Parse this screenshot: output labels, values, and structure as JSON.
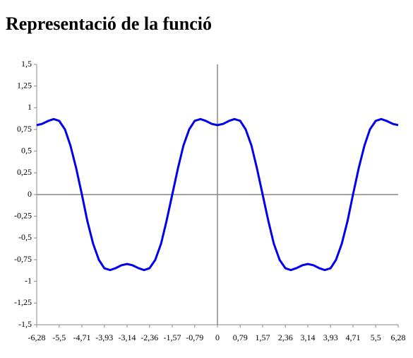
{
  "chart_data": {
    "type": "line",
    "title": "Representació de la funció",
    "color": "#0000ee",
    "x": [
      -6.28,
      -6.09,
      -5.89,
      -5.69,
      -5.5,
      -5.3,
      -5.11,
      -4.91,
      -4.71,
      -4.52,
      -4.32,
      -4.12,
      -3.93,
      -3.73,
      -3.53,
      -3.34,
      -3.14,
      -2.95,
      -2.75,
      -2.55,
      -2.36,
      -2.16,
      -1.96,
      -1.77,
      -1.57,
      -1.37,
      -1.18,
      -0.98,
      -0.79,
      -0.59,
      -0.39,
      -0.2,
      0,
      0.2,
      0.39,
      0.59,
      0.79,
      0.98,
      1.18,
      1.37,
      1.57,
      1.77,
      1.96,
      2.16,
      2.36,
      2.55,
      2.75,
      2.95,
      3.14,
      3.34,
      3.53,
      3.73,
      3.93,
      4.12,
      4.32,
      4.52,
      4.71,
      4.91,
      5.11,
      5.3,
      5.5,
      5.69,
      5.89,
      6.09,
      6.28
    ],
    "values": [
      0.8,
      0.815,
      0.847,
      0.87,
      0.849,
      0.752,
      0.567,
      0.306,
      0,
      -0.306,
      -0.567,
      -0.752,
      -0.849,
      -0.87,
      -0.847,
      -0.815,
      -0.8,
      -0.815,
      -0.847,
      -0.87,
      -0.849,
      -0.752,
      -0.567,
      -0.306,
      0,
      0.306,
      0.567,
      0.752,
      0.849,
      0.87,
      0.847,
      0.815,
      0.8,
      0.815,
      0.847,
      0.87,
      0.849,
      0.752,
      0.567,
      0.306,
      0,
      -0.306,
      -0.567,
      -0.752,
      -0.849,
      -0.87,
      -0.847,
      -0.815,
      -0.8,
      -0.815,
      -0.847,
      -0.87,
      -0.849,
      -0.752,
      -0.567,
      -0.306,
      0,
      0.306,
      0.567,
      0.752,
      0.849,
      0.87,
      0.847,
      0.815,
      0.8
    ],
    "xlim": [
      -6.28,
      6.28
    ],
    "xticks": [
      {
        "value": -6.28,
        "label": "-6,28"
      },
      {
        "value": -5.5,
        "label": "-5,5"
      },
      {
        "value": -4.71,
        "label": "-4,71"
      },
      {
        "value": -3.93,
        "label": "-3,93"
      },
      {
        "value": -3.14,
        "label": "-3,14"
      },
      {
        "value": -2.36,
        "label": "-2,36"
      },
      {
        "value": -1.57,
        "label": "-1,57"
      },
      {
        "value": -0.79,
        "label": "-0,79"
      },
      0,
      {
        "value": 0.79,
        "label": "0,79"
      },
      {
        "value": 1.57,
        "label": "1,57"
      },
      {
        "value": 2.36,
        "label": "2,36"
      },
      {
        "value": 3.14,
        "label": "3,14"
      },
      {
        "value": 3.93,
        "label": "3,93"
      },
      {
        "value": 4.71,
        "label": "4,71"
      },
      {
        "value": 5.5,
        "label": "5,5"
      },
      {
        "value": 6.28,
        "label": "6,28"
      }
    ],
    "ylim": [
      -1.5,
      1.5
    ],
    "yticks": [
      {
        "value": -1.5,
        "label": "-1,5"
      },
      {
        "value": -1.25,
        "label": "-1,25"
      },
      -1,
      {
        "value": -0.75,
        "label": "-0,75"
      },
      {
        "value": -0.5,
        "label": "-0,5"
      },
      {
        "value": -0.25,
        "label": "-0,25"
      },
      0,
      {
        "value": 0.25,
        "label": "0,25"
      },
      {
        "value": 0.5,
        "label": "0,5"
      },
      {
        "value": 0.75,
        "label": "0,75"
      },
      1,
      {
        "value": 1.25,
        "label": "1,25"
      },
      {
        "value": 1.5,
        "label": "1,5"
      }
    ]
  }
}
